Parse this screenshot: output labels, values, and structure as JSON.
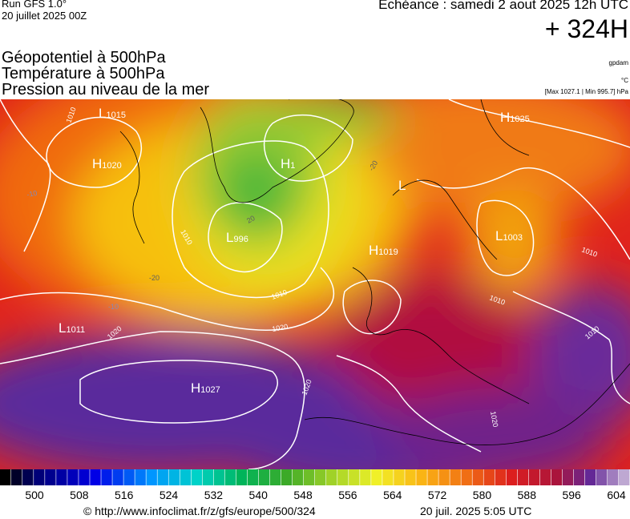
{
  "header": {
    "run": "Run GFS 1.0°",
    "run_date": "20 juillet 2025 00Z",
    "valid": "Echéance : samedi 2 aout 2025 12h UTC",
    "lead": "+ 324H",
    "fields": [
      "Géopotentiel à 500hPa",
      "Température à 500hPa",
      "Pression au niveau de la mer"
    ],
    "units": [
      "gpdam",
      "°C",
      "[Max 1027.1 | Min 995.7] hPa"
    ]
  },
  "map": {
    "centers": [
      {
        "letter": "L",
        "value": "1015"
      },
      {
        "letter": "H",
        "value": "1020"
      },
      {
        "letter": "H",
        "value": "1"
      },
      {
        "letter": "L",
        "value": "996"
      },
      {
        "letter": "L"
      },
      {
        "letter": "H",
        "value": "1019"
      },
      {
        "letter": "L",
        "value": "1003"
      },
      {
        "letter": "H",
        "value": "1025"
      },
      {
        "letter": "L",
        "value": "1011"
      },
      {
        "letter": "H",
        "value": "1027"
      }
    ],
    "contour_labels": [
      "1010",
      "1010",
      "1010",
      "1020",
      "1020",
      "1010",
      "1010",
      "1010",
      "1020",
      "1020",
      "-10",
      "-20",
      "20",
      "-10",
      "-20"
    ]
  },
  "colorbar": {
    "labels": [
      "500",
      "508",
      "516",
      "524",
      "532",
      "540",
      "548",
      "556",
      "564",
      "572",
      "580",
      "588",
      "596",
      "604"
    ]
  },
  "footer": {
    "source": "© http://www.infoclimat.fr/z/gfs/europe/500/324",
    "issued": "20 juil. 2025  5:05 UTC"
  }
}
